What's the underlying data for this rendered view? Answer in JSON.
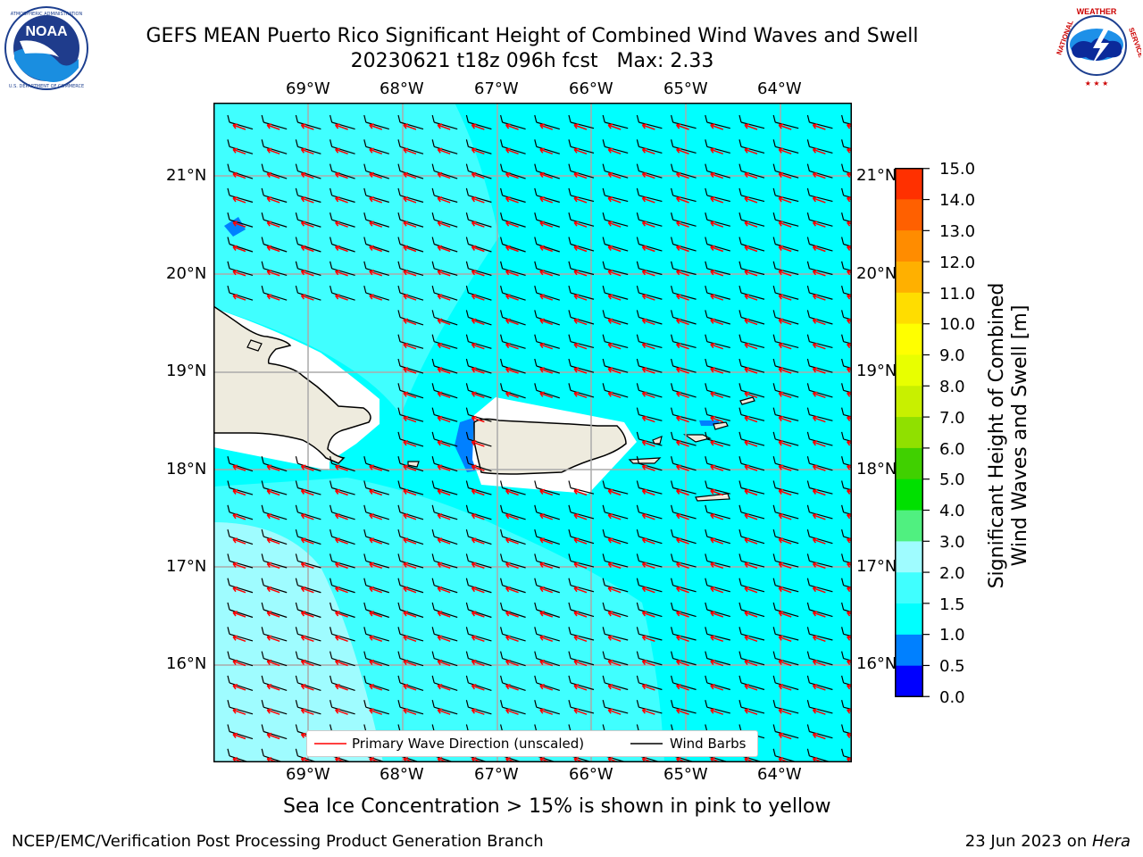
{
  "title": {
    "line1": "GEFS MEAN Puerto Rico Significant Height of Combined Wind Waves and Swell",
    "line2": "20230621 t18z 096h fcst   Max: 2.33"
  },
  "logos": {
    "noaa_text": "NOAA",
    "nws_text": "NATIONAL WEATHER SERVICE",
    "noaa_ring_text": "NATIONAL OCEANIC AND ATMOSPHERIC ADMINISTRATION · U.S. DEPARTMENT OF COMMERCE"
  },
  "map": {
    "lon_labels": [
      "69°W",
      "68°W",
      "67°W",
      "66°W",
      "65°W",
      "64°W"
    ],
    "lat_labels": [
      "21°N",
      "20°N",
      "19°N",
      "18°N",
      "17°N",
      "16°N"
    ],
    "legend": {
      "wave_dir": "Primary Wave Direction (unscaled)",
      "wind_barbs": "Wind Barbs"
    },
    "colors": {
      "ocean_main": "#00ffff",
      "ocean_light": "#40ffff",
      "ocean_lighter": "#9ffcff",
      "band_1_0": "#0080ff",
      "land": "#eeebde",
      "wave_arrow": "#ff0000",
      "barb": "#000000"
    }
  },
  "colorbar": {
    "label_line1": "Significant Height of Combined",
    "label_line2": "Wind Waves and Swell [m]",
    "ticks": [
      "15.0",
      "14.0",
      "13.0",
      "12.0",
      "11.0",
      "10.0",
      "9.0",
      "8.0",
      "7.0",
      "6.0",
      "5.0",
      "4.0",
      "3.0",
      "2.0",
      "1.5",
      "1.0",
      "0.5",
      "0.0"
    ],
    "colors_bottom_to_top": [
      "#0000ff",
      "#0080ff",
      "#00ffff",
      "#40ffff",
      "#9ffcff",
      "#50f080",
      "#00e000",
      "#40d000",
      "#90e000",
      "#c8f000",
      "#e8ff00",
      "#ffff00",
      "#ffdd00",
      "#ffb000",
      "#ff8c00",
      "#ff6000",
      "#ff3000",
      "#ff0000"
    ]
  },
  "footer": {
    "sea_ice_note": "Sea Ice Concentration > 15% is shown in pink to yellow",
    "left": "NCEP/EMC/Verification Post Processing Product Generation Branch",
    "right_prefix": "23 Jun 2023 on ",
    "right_host": "Hera"
  }
}
